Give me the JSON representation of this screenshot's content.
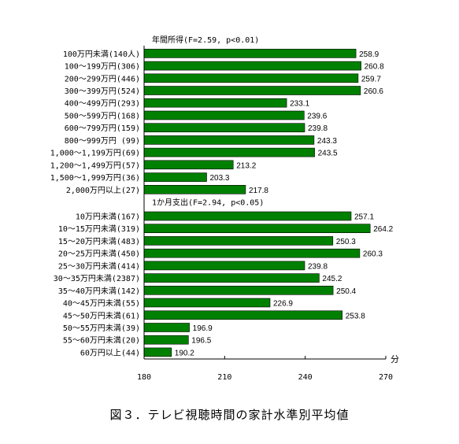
{
  "caption": "図３．テレビ視聴時間の家計水準別平均値",
  "chart_data": {
    "type": "bar",
    "orientation": "horizontal",
    "xlim": [
      180,
      270
    ],
    "xticks": [
      180,
      210,
      240,
      270
    ],
    "xunit": "分",
    "bar_color": "#008000",
    "groups": [
      {
        "title": "年間所得(F=2.59, p<0.01)",
        "categories": [
          "100万円未満(140人)",
          "100～199万円(306)",
          "200～299万円(446)",
          "300～399万円(524)",
          "400～499万円(293)",
          "500～599万円(168)",
          "600～799万円(159)",
          "800～999万円 (99)",
          "1,000～1,199万円(69)",
          "1,200～1,499万円(57)",
          "1,500～1,999万円(36)",
          "2,000万円以上(27)"
        ],
        "values": [
          258.9,
          260.8,
          259.7,
          260.6,
          233.1,
          239.6,
          239.8,
          243.3,
          243.5,
          213.2,
          203.3,
          217.8
        ],
        "labels": [
          "258.9",
          "260.8",
          "259.7",
          "260.6",
          "233.1",
          "239.6",
          "239.8",
          "243.3",
          "243.5",
          "213.2",
          "203.3",
          "217.8"
        ]
      },
      {
        "title": "1か月支出(F=2.94, p<0.05)",
        "categories": [
          "10万円未満(167)",
          "10～15万円未満(319)",
          "15～20万円未満(483)",
          "20～25万円未満(450)",
          "25～30万円未満(414)",
          "30～35万円未満(2387)",
          "35～40万円未満(142)",
          "40～45万円未満(55)",
          "45～50万円未満(61)",
          "50～55万円未満(39)",
          "55～60万円未満(20)",
          "60万円以上(44)"
        ],
        "values": [
          257.1,
          264.2,
          250.3,
          260.3,
          239.8,
          245.2,
          250.4,
          226.9,
          253.8,
          196.9,
          196.5,
          190.2
        ],
        "labels": [
          "257.1",
          "264.2",
          "250.3",
          "260.3",
          "239.8",
          "245.2",
          "250.4",
          "226.9",
          "253.8",
          "196.9",
          "196.5",
          "190.2"
        ]
      }
    ]
  }
}
